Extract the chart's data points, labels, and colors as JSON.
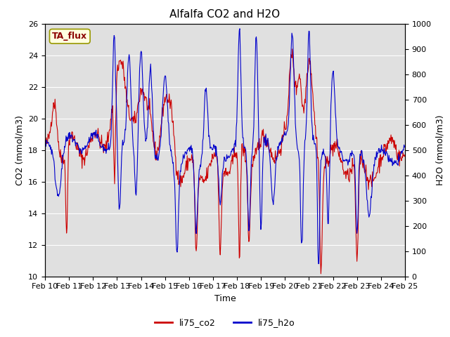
{
  "title": "Alfalfa CO2 and H2O",
  "xlabel": "Time",
  "ylabel_left": "CO2 (mmol/m3)",
  "ylabel_right": "H2O (mmol/m3)",
  "ylim_left": [
    10,
    26
  ],
  "ylim_right": [
    0,
    1000
  ],
  "yticks_left": [
    10,
    12,
    14,
    16,
    18,
    20,
    22,
    24,
    26
  ],
  "yticks_right": [
    0,
    100,
    200,
    300,
    400,
    500,
    600,
    700,
    800,
    900,
    1000
  ],
  "x_tick_labels": [
    "Feb 10",
    "Feb 11",
    "Feb 12",
    "Feb 13",
    "Feb 14",
    "Feb 15",
    "Feb 16",
    "Feb 17",
    "Feb 18",
    "Feb 19",
    "Feb 20",
    "Feb 21",
    "Feb 22",
    "Feb 23",
    "Feb 24",
    "Feb 25"
  ],
  "color_co2": "#cc0000",
  "color_h2o": "#0000cc",
  "legend_co2": "li75_co2",
  "legend_h2o": "li75_h2o",
  "annotation_text": "TA_flux",
  "plot_bg_color": "#e0e0e0",
  "title_fontsize": 11,
  "axis_fontsize": 9,
  "tick_fontsize": 8,
  "legend_fontsize": 9
}
